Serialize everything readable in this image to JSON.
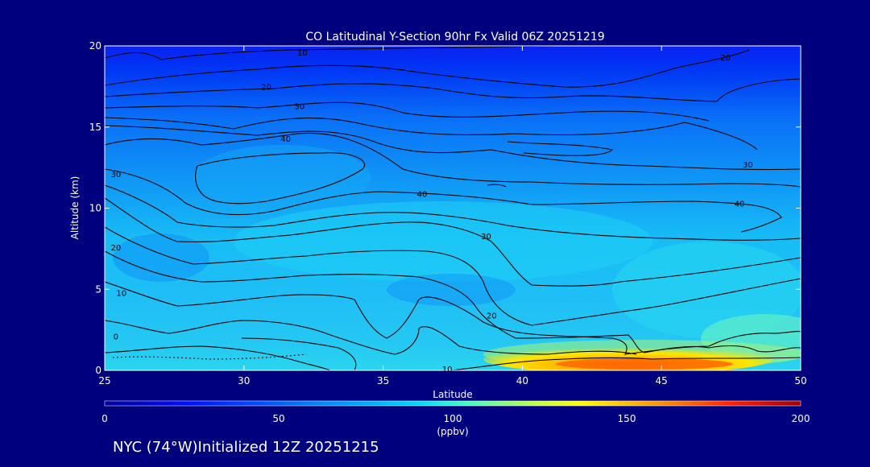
{
  "chart_data": {
    "type": "heatmap",
    "title": "CO Latitudinal Y-Section 90hr  Fx Valid 06Z 20251219",
    "xlabel": "Latitude",
    "ylabel": "Altitude (km)",
    "xlim": [
      25,
      50
    ],
    "ylim": [
      0,
      20
    ],
    "x_ticks": [
      "25",
      "30",
      "35",
      "40",
      "45",
      "50"
    ],
    "y_ticks": [
      "0",
      "5",
      "10",
      "15",
      "20"
    ],
    "colorbar": {
      "range": [
        0,
        200
      ],
      "ticks": [
        "0",
        "50",
        "100",
        "150",
        "200"
      ],
      "unit": "(ppbv)"
    },
    "contour_labels": [
      {
        "text": "10",
        "lat": 32.1,
        "alt": 19.6
      },
      {
        "text": "20",
        "lat": 30.8,
        "alt": 17.5
      },
      {
        "text": "30",
        "lat": 32.0,
        "alt": 16.3
      },
      {
        "text": "40",
        "lat": 31.5,
        "alt": 14.3
      },
      {
        "text": "20",
        "lat": 47.3,
        "alt": 19.3
      },
      {
        "text": "30",
        "lat": 48.1,
        "alt": 12.7
      },
      {
        "text": "40",
        "lat": 47.8,
        "alt": 10.3
      },
      {
        "text": "40",
        "lat": 36.4,
        "alt": 10.9
      },
      {
        "text": "30",
        "lat": 38.7,
        "alt": 8.3
      },
      {
        "text": "20",
        "lat": 38.9,
        "alt": 3.4
      },
      {
        "text": "10",
        "lat": 37.3,
        "alt": 0.1
      },
      {
        "text": "30",
        "lat": 25.4,
        "alt": 12.1
      },
      {
        "text": "20",
        "lat": 25.4,
        "alt": 7.6
      },
      {
        "text": "10",
        "lat": 25.6,
        "alt": 4.8
      },
      {
        "text": "0",
        "lat": 25.4,
        "alt": 2.1
      }
    ]
  },
  "footer": {
    "label": "NYC (74°W)Initialized 12Z 20251215"
  }
}
